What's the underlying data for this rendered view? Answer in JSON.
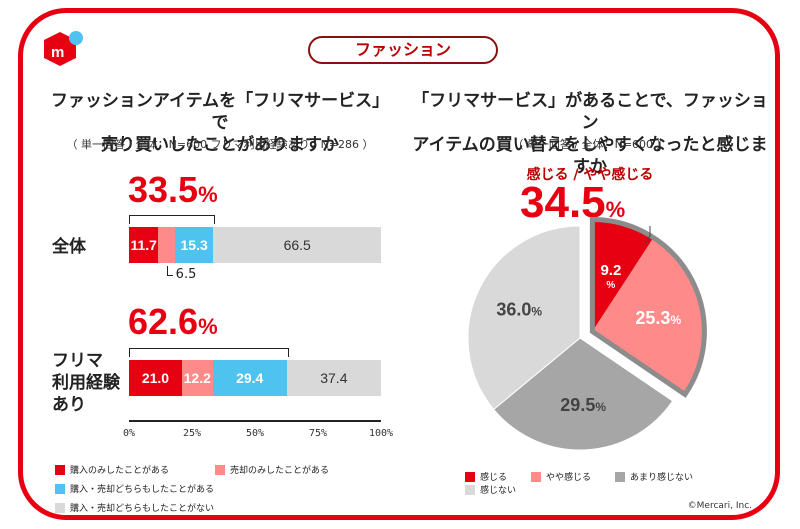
{
  "category": "ファッション",
  "colors": {
    "brand_red": "#e60012",
    "buy_only": "#e60012",
    "sell_only": "#ff8a8a",
    "both": "#4ec3f0",
    "neither": "#d9d9d9",
    "feel": "#e60012",
    "somewhat_feel": "#ff8a8a",
    "not_much": "#a6a6a6",
    "not_feel": "#d9d9d9"
  },
  "logo": {
    "icon": "mercari-logo-icon",
    "letter": "m"
  },
  "left": {
    "title_line1": "ファッションアイテムを「フリマサービス」で",
    "title_line2": "売り買いしたことがありますか",
    "subtitle": "（ 単一回答 / 全体：N=600 フリマ利用経験あり：N=286 ）"
  },
  "right": {
    "title_line1": "「フリマサービス」があることで、ファッション",
    "title_line2": "アイテムの買い替えをしやすくなったと感じますか",
    "subtitle": "（ 単一回答 / 全体：N=600 ）",
    "highlight_label": "感じる /  やや感じる",
    "highlight_value": "34.5",
    "highlight_unit": "%"
  },
  "chart_data": [
    {
      "type": "bar",
      "orientation": "horizontal-stacked",
      "title": "ファッションアイテムを「フリマサービス」で売り買いしたことがありますか",
      "categories": [
        "全体",
        "フリマ利用経験あり"
      ],
      "category_labels": [
        "全体",
        "フリマ\n利用経験\nあり"
      ],
      "series": [
        {
          "name": "購入のみしたことがある",
          "values": [
            11.7,
            21.0
          ]
        },
        {
          "name": "売却のみしたことがある",
          "values": [
            6.5,
            12.2
          ]
        },
        {
          "name": "購入・売却どちらもしたことがある",
          "values": [
            15.3,
            29.4
          ]
        },
        {
          "name": "購入・売却どちらもしたことがない",
          "values": [
            66.5,
            37.4
          ]
        }
      ],
      "totals_highlight": [
        {
          "value": "33.5",
          "unit": "%"
        },
        {
          "value": "62.6",
          "unit": "%"
        }
      ],
      "data_labels": [
        [
          "11.7",
          "",
          "15.3",
          "66.5"
        ],
        [
          "21.0",
          "12.2",
          "29.4",
          "37.4"
        ]
      ],
      "callout": "6.5",
      "xlim": [
        0,
        100
      ],
      "xticks": [
        "0%",
        "25%",
        "50%",
        "75%",
        "100%"
      ],
      "legend": [
        "購入のみしたことがある",
        "売却のみしたことがある",
        "購入・売却どちらもしたことがある",
        "購入・売却どちらもしたことがない"
      ],
      "legend_position": "bottom"
    },
    {
      "type": "pie",
      "title": "「フリマサービス」があることで、ファッションアイテムの買い替えをしやすくなったと感じますか",
      "slices": [
        {
          "name": "感じる",
          "value": 9.2,
          "label": "9.2",
          "exploded": true
        },
        {
          "name": "やや感じる",
          "value": 25.3,
          "label": "25.3",
          "exploded": true
        },
        {
          "name": "あまり感じない",
          "value": 29.5,
          "label": "29.5",
          "exploded": false
        },
        {
          "name": "感じない",
          "value": 36.0,
          "label": "36.0",
          "exploded": false
        }
      ],
      "unit": "%",
      "legend": [
        "感じる",
        "やや感じる",
        "あまり感じない",
        "感じない"
      ],
      "legend_position": "bottom"
    }
  ],
  "copyright": "©Mercari, Inc."
}
